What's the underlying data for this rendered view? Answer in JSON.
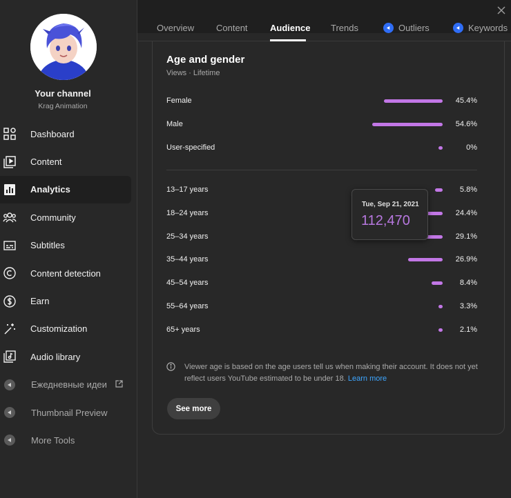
{
  "channel": {
    "name": "Your channel",
    "handle": "Krag Animation"
  },
  "sidebar": {
    "items": [
      {
        "label": "Dashboard",
        "icon": "dashboard-icon"
      },
      {
        "label": "Content",
        "icon": "content-icon"
      },
      {
        "label": "Analytics",
        "icon": "analytics-icon",
        "active": true
      },
      {
        "label": "Community",
        "icon": "community-icon"
      },
      {
        "label": "Subtitles",
        "icon": "subtitles-icon"
      },
      {
        "label": "Content detection",
        "icon": "copyright-icon"
      },
      {
        "label": "Earn",
        "icon": "dollar-icon"
      },
      {
        "label": "Customization",
        "icon": "magic-wand-icon"
      },
      {
        "label": "Audio library",
        "icon": "audio-library-icon"
      }
    ],
    "tools": [
      {
        "label": "Ежедневные идеи",
        "icon": "extension-icon",
        "external": true
      },
      {
        "label": "Thumbnail Preview",
        "icon": "extension-icon"
      },
      {
        "label": "More Tools",
        "icon": "extension-icon"
      }
    ]
  },
  "tabs": [
    {
      "label": "Overview"
    },
    {
      "label": "Content"
    },
    {
      "label": "Audience",
      "active": true
    },
    {
      "label": "Trends"
    },
    {
      "label": "Outliers",
      "badge": true
    },
    {
      "label": "Keywords",
      "badge": true
    }
  ],
  "card": {
    "title": "Age and gender",
    "subtitle": "Views · Lifetime",
    "gender": [
      {
        "label": "Female",
        "percent": 45.4,
        "display": "45.4%"
      },
      {
        "label": "Male",
        "percent": 54.6,
        "display": "54.6%"
      },
      {
        "label": "User-specified",
        "percent": 0,
        "display": "0%"
      }
    ],
    "age": [
      {
        "label": "13–17 years",
        "percent": 5.8,
        "display": "5.8%"
      },
      {
        "label": "18–24 years",
        "percent": 24.4,
        "display": "24.4%"
      },
      {
        "label": "25–34 years",
        "percent": 29.1,
        "display": "29.1%"
      },
      {
        "label": "35–44 years",
        "percent": 26.9,
        "display": "26.9%"
      },
      {
        "label": "45–54 years",
        "percent": 8.4,
        "display": "8.4%"
      },
      {
        "label": "55–64 years",
        "percent": 3.3,
        "display": "3.3%"
      },
      {
        "label": "65+ years",
        "percent": 2.1,
        "display": "2.1%"
      }
    ],
    "tooltip": {
      "date": "Tue, Sep 21, 2021",
      "value": "112,470"
    },
    "note": "Viewer age is based on the age users tell us when making their account. It does not yet reflect users YouTube estimated to be under 18.",
    "learn_more": "Learn more",
    "see_more": "See more"
  },
  "colors": {
    "accent_bar": "#c277e6",
    "link": "#3ea6ff",
    "badge": "#2f6df5"
  }
}
